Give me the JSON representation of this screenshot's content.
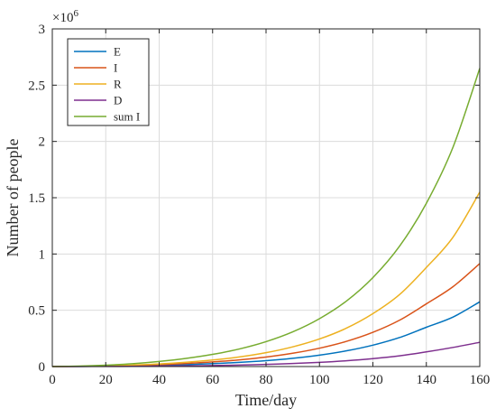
{
  "chart_data": {
    "type": "line",
    "xlabel": "Time/day",
    "ylabel": "Number of people",
    "exponent_label": "×10",
    "exponent_power": "6",
    "xlim": [
      0,
      160
    ],
    "ylim": [
      0,
      3
    ],
    "y_scale_factor": 1000000,
    "xticks": [
      0,
      20,
      40,
      60,
      80,
      100,
      120,
      140,
      160
    ],
    "yticks": [
      0,
      0.5,
      1,
      1.5,
      2,
      2.5,
      3
    ],
    "grid": true,
    "legend_position": "top-left",
    "x": [
      0,
      10,
      20,
      30,
      40,
      50,
      60,
      70,
      80,
      90,
      100,
      110,
      120,
      130,
      140,
      150,
      160
    ],
    "series": [
      {
        "name": "E",
        "color": "#0072bd",
        "values": [
          0.0,
          0.001,
          0.003,
          0.006,
          0.011,
          0.017,
          0.026,
          0.037,
          0.052,
          0.073,
          0.101,
          0.139,
          0.19,
          0.258,
          0.349,
          0.44,
          0.575
        ]
      },
      {
        "name": "I",
        "color": "#d95319",
        "values": [
          0.0,
          0.002,
          0.005,
          0.01,
          0.017,
          0.027,
          0.041,
          0.059,
          0.084,
          0.118,
          0.163,
          0.223,
          0.304,
          0.412,
          0.557,
          0.71,
          0.915
        ]
      },
      {
        "name": "R",
        "color": "#edb120",
        "values": [
          0.0,
          0.002,
          0.006,
          0.013,
          0.023,
          0.038,
          0.058,
          0.085,
          0.123,
          0.175,
          0.245,
          0.34,
          0.47,
          0.64,
          0.88,
          1.15,
          1.55
        ]
      },
      {
        "name": "D",
        "color": "#7e2f8e",
        "values": [
          0.0,
          0.0005,
          0.001,
          0.002,
          0.004,
          0.006,
          0.009,
          0.013,
          0.019,
          0.027,
          0.037,
          0.051,
          0.07,
          0.095,
          0.13,
          0.17,
          0.215
        ]
      },
      {
        "name": "sum I",
        "color": "#77ac30",
        "values": [
          0.0,
          0.004,
          0.012,
          0.025,
          0.045,
          0.072,
          0.108,
          0.156,
          0.221,
          0.308,
          0.425,
          0.58,
          0.79,
          1.07,
          1.45,
          1.95,
          2.65
        ]
      }
    ]
  }
}
